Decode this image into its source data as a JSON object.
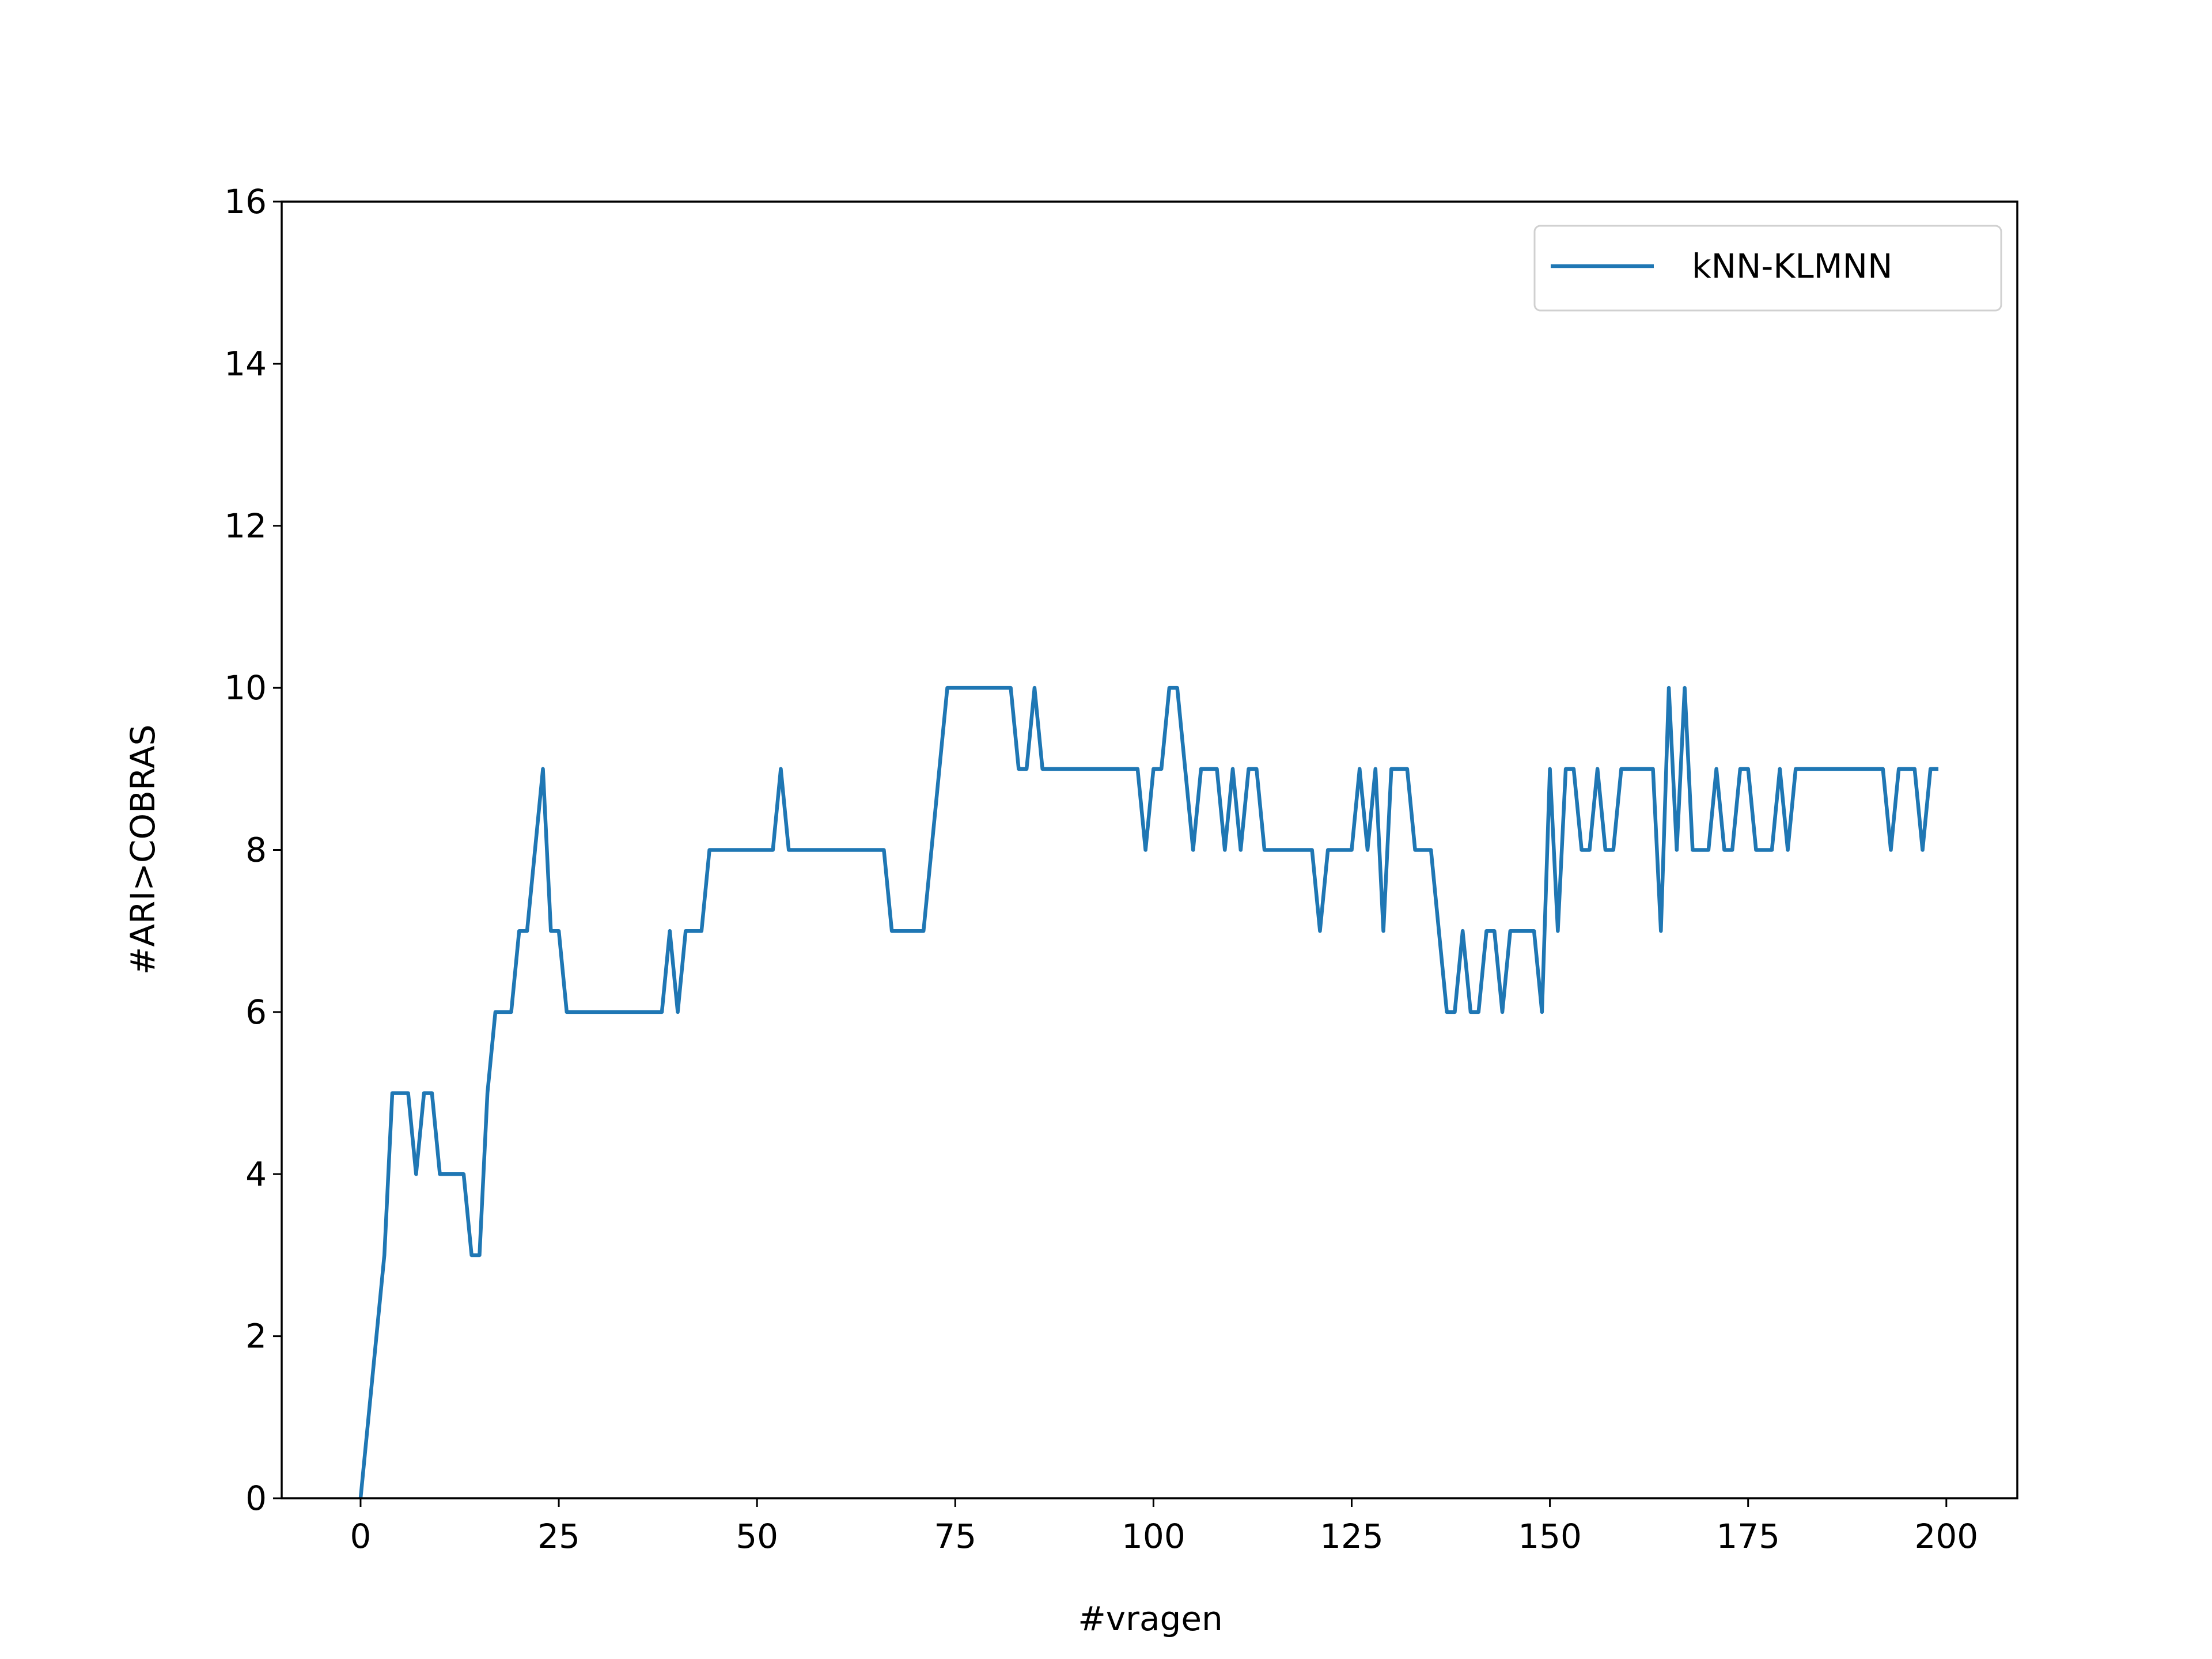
{
  "chart_data": {
    "type": "line",
    "xlabel": "#vragen",
    "ylabel": "#ARI>COBRAS",
    "x": [
      0,
      1,
      2,
      3,
      4,
      5,
      6,
      7,
      8,
      9,
      10,
      11,
      12,
      13,
      14,
      15,
      16,
      17,
      18,
      19,
      20,
      21,
      22,
      23,
      24,
      25,
      26,
      27,
      28,
      29,
      30,
      31,
      32,
      33,
      34,
      35,
      36,
      37,
      38,
      39,
      40,
      41,
      42,
      43,
      44,
      45,
      46,
      47,
      48,
      49,
      50,
      51,
      52,
      53,
      54,
      55,
      56,
      57,
      58,
      59,
      60,
      61,
      62,
      63,
      64,
      65,
      66,
      67,
      68,
      69,
      70,
      71,
      72,
      73,
      74,
      75,
      76,
      77,
      78,
      79,
      80,
      81,
      82,
      83,
      84,
      85,
      86,
      87,
      88,
      89,
      90,
      91,
      92,
      93,
      94,
      95,
      96,
      97,
      98,
      99,
      100,
      101,
      102,
      103,
      104,
      105,
      106,
      107,
      108,
      109,
      110,
      111,
      112,
      113,
      114,
      115,
      116,
      117,
      118,
      119,
      120,
      121,
      122,
      123,
      124,
      125,
      126,
      127,
      128,
      129,
      130,
      131,
      132,
      133,
      134,
      135,
      136,
      137,
      138,
      139,
      140,
      141,
      142,
      143,
      144,
      145,
      146,
      147,
      148,
      149,
      150,
      151,
      152,
      153,
      154,
      155,
      156,
      157,
      158,
      159,
      160,
      161,
      162,
      163,
      164,
      165,
      166,
      167,
      168,
      169,
      170,
      171,
      172,
      173,
      174,
      175,
      176,
      177,
      178,
      179,
      180,
      181,
      182,
      183,
      184,
      185,
      186,
      187,
      188,
      189,
      190,
      191,
      192,
      193,
      194,
      195,
      196,
      197,
      198,
      199
    ],
    "series": [
      {
        "name": "kNN-KLMNN",
        "color": "#1f77b4",
        "values": [
          0,
          1,
          2,
          3,
          5,
          5,
          5,
          4,
          5,
          5,
          4,
          4,
          4,
          4,
          3,
          3,
          5,
          6,
          6,
          6,
          7,
          7,
          8,
          9,
          7,
          7,
          6,
          6,
          6,
          6,
          6,
          6,
          6,
          6,
          6,
          6,
          6,
          6,
          6,
          7,
          6,
          7,
          7,
          7,
          8,
          8,
          8,
          8,
          8,
          8,
          8,
          8,
          8,
          9,
          8,
          8,
          8,
          8,
          8,
          8,
          8,
          8,
          8,
          8,
          8,
          8,
          8,
          7,
          7,
          7,
          7,
          7,
          8,
          9,
          10,
          10,
          10,
          10,
          10,
          10,
          10,
          10,
          10,
          9,
          9,
          10,
          9,
          9,
          9,
          9,
          9,
          9,
          9,
          9,
          9,
          9,
          9,
          9,
          9,
          8,
          9,
          9,
          10,
          10,
          9,
          8,
          9,
          9,
          9,
          8,
          9,
          8,
          9,
          9,
          8,
          8,
          8,
          8,
          8,
          8,
          8,
          7,
          8,
          8,
          8,
          8,
          9,
          8,
          9,
          7,
          9,
          9,
          9,
          8,
          8,
          8,
          7,
          6,
          6,
          7,
          6,
          6,
          7,
          7,
          6,
          7,
          7,
          7,
          7,
          6,
          9,
          7,
          9,
          9,
          8,
          8,
          9,
          8,
          8,
          9,
          9,
          9,
          9,
          9,
          7,
          10,
          8,
          10,
          8,
          8,
          8,
          9,
          8,
          8,
          9,
          9,
          8,
          8,
          8,
          9,
          8,
          9,
          9,
          9,
          9,
          9,
          9,
          9,
          9,
          9,
          9,
          9,
          9,
          8,
          9,
          9,
          9,
          8,
          9,
          9
        ]
      }
    ],
    "xlim": [
      -9.95,
      208.95
    ],
    "ylim": [
      0,
      16
    ],
    "xticks": [
      0,
      25,
      50,
      75,
      100,
      125,
      150,
      175,
      200
    ],
    "yticks": [
      0,
      2,
      4,
      6,
      8,
      10,
      12,
      14,
      16
    ],
    "legend": "upper right",
    "grid": false
  }
}
